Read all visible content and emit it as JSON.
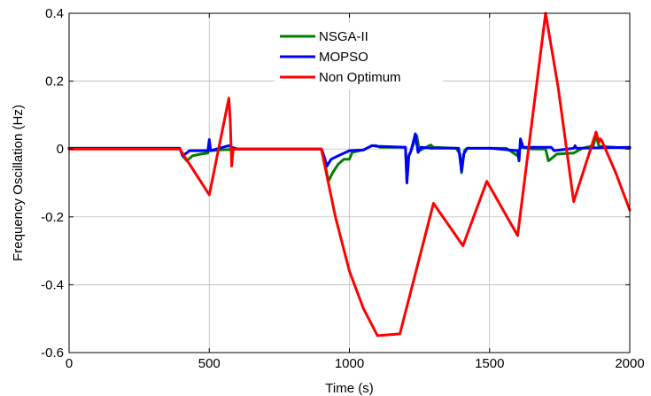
{
  "chart_data": {
    "type": "line",
    "xlabel": "Time (s)",
    "ylabel": "Frequency Oscillation (Hz)",
    "xlim": [
      0,
      2000
    ],
    "ylim": [
      -0.6,
      0.4
    ],
    "xticks": [
      0,
      500,
      1000,
      1500,
      2000
    ],
    "yticks": [
      -0.6,
      -0.4,
      -0.2,
      0,
      0.2,
      0.4
    ],
    "xtick_labels": [
      "0",
      "500",
      "1000",
      "1500",
      "2000"
    ],
    "ytick_labels": [
      "-0.6",
      "-0.4",
      "-0.2",
      "0",
      "0.2",
      "0.4"
    ],
    "grid": true,
    "legend": "top-center",
    "series": [
      {
        "name": "NSGA-II",
        "color": "#008000",
        "points": [
          [
            0,
            0.002
          ],
          [
            395,
            0.002
          ],
          [
            405,
            -0.02
          ],
          [
            420,
            -0.035
          ],
          [
            440,
            -0.02
          ],
          [
            470,
            -0.015
          ],
          [
            495,
            -0.012
          ],
          [
            500,
            0.015
          ],
          [
            505,
            -0.005
          ],
          [
            540,
            -0.003
          ],
          [
            600,
            0
          ],
          [
            900,
            0
          ],
          [
            905,
            -0.01
          ],
          [
            925,
            -0.095
          ],
          [
            940,
            -0.07
          ],
          [
            960,
            -0.045
          ],
          [
            980,
            -0.03
          ],
          [
            1000,
            -0.03
          ],
          [
            1010,
            -0.01
          ],
          [
            1030,
            -0.006
          ],
          [
            1050,
            -0.003
          ],
          [
            1080,
            0.01
          ],
          [
            1095,
            0.01
          ],
          [
            1110,
            0.005
          ],
          [
            1200,
            0.005
          ],
          [
            1205,
            -0.09
          ],
          [
            1212,
            -0.02
          ],
          [
            1220,
            -0.005
          ],
          [
            1240,
            0.04
          ],
          [
            1250,
            -0.005
          ],
          [
            1290,
            0.012
          ],
          [
            1300,
            0.005
          ],
          [
            1380,
            0.002
          ],
          [
            1395,
            -0.015
          ],
          [
            1400,
            -0.07
          ],
          [
            1410,
            -0.005
          ],
          [
            1420,
            0.002
          ],
          [
            1500,
            0.002
          ],
          [
            1560,
            0.002
          ],
          [
            1600,
            -0.02
          ],
          [
            1610,
            0.005
          ],
          [
            1650,
            0
          ],
          [
            1700,
            0
          ],
          [
            1710,
            -0.035
          ],
          [
            1725,
            -0.025
          ],
          [
            1740,
            -0.015
          ],
          [
            1800,
            -0.012
          ],
          [
            1830,
            0.002
          ],
          [
            1870,
            0.01
          ],
          [
            1880,
            0.04
          ],
          [
            1890,
            0.008
          ],
          [
            2000,
            0.002
          ]
        ]
      },
      {
        "name": "MOPSO",
        "color": "#0000ff",
        "points": [
          [
            0,
            0.002
          ],
          [
            395,
            0.002
          ],
          [
            405,
            -0.02
          ],
          [
            430,
            -0.005
          ],
          [
            495,
            -0.005
          ],
          [
            500,
            0.028
          ],
          [
            505,
            -0.005
          ],
          [
            570,
            0.01
          ],
          [
            580,
            0.005
          ],
          [
            600,
            0
          ],
          [
            900,
            0
          ],
          [
            905,
            -0.01
          ],
          [
            920,
            -0.05
          ],
          [
            935,
            -0.03
          ],
          [
            960,
            -0.02
          ],
          [
            1000,
            -0.005
          ],
          [
            1050,
            -0.003
          ],
          [
            1080,
            0.01
          ],
          [
            1100,
            0.008
          ],
          [
            1200,
            0.005
          ],
          [
            1205,
            -0.1
          ],
          [
            1212,
            -0.02
          ],
          [
            1220,
            -0.005
          ],
          [
            1235,
            0.045
          ],
          [
            1245,
            -0.01
          ],
          [
            1255,
            0.005
          ],
          [
            1295,
            0.002
          ],
          [
            1300,
            0.003
          ],
          [
            1390,
            0.002
          ],
          [
            1400,
            -0.065
          ],
          [
            1408,
            -0.015
          ],
          [
            1420,
            0.002
          ],
          [
            1505,
            0.002
          ],
          [
            1600,
            -0.005
          ],
          [
            1605,
            -0.035
          ],
          [
            1610,
            0.03
          ],
          [
            1620,
            0.005
          ],
          [
            1720,
            0.005
          ],
          [
            1730,
            -0.005
          ],
          [
            1800,
            0.002
          ],
          [
            1805,
            0.01
          ],
          [
            1810,
            0.002
          ],
          [
            2000,
            0.005
          ]
        ]
      },
      {
        "name": "Non Optimum",
        "color": "#ff0000",
        "points": [
          [
            0,
            0
          ],
          [
            395,
            0
          ],
          [
            500,
            -0.135
          ],
          [
            570,
            0.15
          ],
          [
            575,
            0.08
          ],
          [
            580,
            -0.05
          ],
          [
            585,
            0
          ],
          [
            590,
            0
          ],
          [
            900,
            0
          ],
          [
            905,
            -0.02
          ],
          [
            950,
            -0.2
          ],
          [
            1000,
            -0.36
          ],
          [
            1050,
            -0.47
          ],
          [
            1100,
            -0.55
          ],
          [
            1180,
            -0.545
          ],
          [
            1300,
            -0.16
          ],
          [
            1405,
            -0.285
          ],
          [
            1490,
            -0.095
          ],
          [
            1600,
            -0.255
          ],
          [
            1700,
            0.4
          ],
          [
            1745,
            0.18
          ],
          [
            1800,
            -0.155
          ],
          [
            1880,
            0.05
          ],
          [
            1890,
            0.02
          ],
          [
            1895,
            0.03
          ],
          [
            1900,
            0.025
          ],
          [
            1950,
            -0.07
          ],
          [
            2000,
            -0.18
          ]
        ]
      }
    ]
  }
}
